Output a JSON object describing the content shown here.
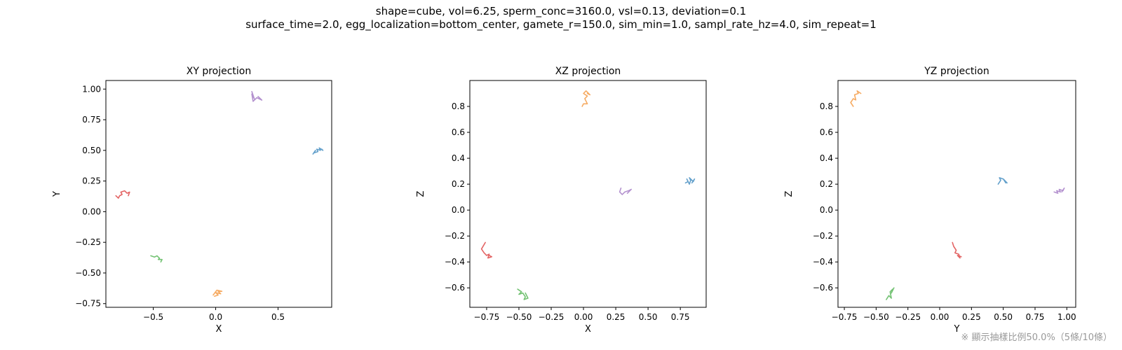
{
  "figure": {
    "title_line1": "shape=cube, vol=6.25, sperm_conc=3160.0, vsl=0.13, deviation=0.1",
    "title_line2": "surface_time=2.0, egg_localization=bottom_center, gamete_r=150.0, sim_min=1.0, sampl_rate_hz=4.0, sim_repeat=1",
    "note": "※ 顯示抽樣比例50.0%（5條/10條）"
  },
  "colors": {
    "blue": "#5b9bc8",
    "orange": "#f5a65b",
    "green": "#6cbf6c",
    "red": "#e15c5c",
    "purple": "#b08ccc"
  },
  "chart_data": [
    {
      "type": "line",
      "title": "XY projection",
      "xlabel": "X",
      "ylabel": "Y",
      "xlim": [
        -0.88,
        0.93
      ],
      "ylim": [
        -0.78,
        1.07
      ],
      "xticks": [
        -0.5,
        0.0,
        0.5
      ],
      "xtick_labels": [
        "−0.5",
        "0.0",
        "0.5"
      ],
      "yticks": [
        -0.75,
        -0.5,
        -0.25,
        0.0,
        0.25,
        0.5,
        0.75,
        1.0
      ],
      "ytick_labels": [
        "−0.75",
        "−0.50",
        "−0.25",
        "0.00",
        "0.25",
        "0.50",
        "0.75",
        "1.00"
      ],
      "grid": false,
      "series": [
        {
          "color": "blue",
          "x": [
            0.78,
            0.8,
            0.79,
            0.82,
            0.81,
            0.84,
            0.83,
            0.86,
            0.85
          ],
          "y": [
            0.47,
            0.5,
            0.48,
            0.49,
            0.51,
            0.5,
            0.52,
            0.5,
            0.51
          ]
        },
        {
          "color": "orange",
          "x": [
            -0.01,
            0.02,
            0.0,
            0.04,
            0.02,
            0.05,
            0.01,
            -0.02
          ],
          "y": [
            -0.69,
            -0.68,
            -0.66,
            -0.67,
            -0.65,
            -0.65,
            -0.64,
            -0.68
          ]
        },
        {
          "color": "green",
          "x": [
            -0.52,
            -0.49,
            -0.47,
            -0.45,
            -0.46,
            -0.43,
            -0.44
          ],
          "y": [
            -0.36,
            -0.37,
            -0.36,
            -0.38,
            -0.39,
            -0.39,
            -0.41
          ]
        },
        {
          "color": "red",
          "x": [
            -0.8,
            -0.78,
            -0.77,
            -0.75,
            -0.76,
            -0.73,
            -0.71,
            -0.69,
            -0.7
          ],
          "y": [
            0.13,
            0.11,
            0.13,
            0.14,
            0.16,
            0.17,
            0.15,
            0.16,
            0.13
          ]
        },
        {
          "color": "purple",
          "x": [
            0.29,
            0.3,
            0.31,
            0.29,
            0.3,
            0.33,
            0.35,
            0.37,
            0.34
          ],
          "y": [
            0.98,
            0.95,
            0.92,
            0.96,
            0.9,
            0.93,
            0.92,
            0.91,
            0.94
          ]
        }
      ]
    },
    {
      "type": "line",
      "title": "XZ projection",
      "xlabel": "X",
      "ylabel": "Z",
      "xlim": [
        -0.88,
        0.95
      ],
      "ylim": [
        -0.75,
        1.0
      ],
      "xticks": [
        -0.75,
        -0.5,
        -0.25,
        0.0,
        0.25,
        0.5,
        0.75
      ],
      "xtick_labels": [
        "−0.75",
        "−0.50",
        "−0.25",
        "0.00",
        "0.25",
        "0.50",
        "0.75"
      ],
      "yticks": [
        -0.6,
        -0.4,
        -0.2,
        0.0,
        0.2,
        0.4,
        0.6,
        0.8
      ],
      "ytick_labels": [
        "−0.6",
        "−0.4",
        "−0.2",
        "0.0",
        "0.2",
        "0.4",
        "0.6",
        "0.8"
      ],
      "grid": false,
      "series": [
        {
          "color": "blue",
          "x": [
            0.79,
            0.81,
            0.8,
            0.82,
            0.83,
            0.82,
            0.85,
            0.86,
            0.84
          ],
          "y": [
            0.21,
            0.22,
            0.24,
            0.2,
            0.23,
            0.25,
            0.22,
            0.24,
            0.21
          ]
        },
        {
          "color": "orange",
          "x": [
            -0.01,
            0.0,
            0.03,
            0.01,
            0.03,
            0.0,
            0.02,
            0.05,
            0.03
          ],
          "y": [
            0.8,
            0.82,
            0.82,
            0.86,
            0.88,
            0.9,
            0.92,
            0.89,
            0.9
          ]
        },
        {
          "color": "green",
          "x": [
            -0.51,
            -0.48,
            -0.5,
            -0.47,
            -0.45,
            -0.46,
            -0.43,
            -0.45
          ],
          "y": [
            -0.61,
            -0.63,
            -0.65,
            -0.64,
            -0.67,
            -0.69,
            -0.68,
            -0.64
          ]
        },
        {
          "color": "red",
          "x": [
            -0.76,
            -0.79,
            -0.77,
            -0.75,
            -0.73,
            -0.74,
            -0.71,
            -0.73
          ],
          "y": [
            -0.25,
            -0.3,
            -0.33,
            -0.35,
            -0.34,
            -0.37,
            -0.36,
            -0.35
          ]
        },
        {
          "color": "purple",
          "x": [
            0.29,
            0.28,
            0.3,
            0.32,
            0.35,
            0.37,
            0.34
          ],
          "y": [
            0.17,
            0.14,
            0.12,
            0.14,
            0.15,
            0.16,
            0.13
          ]
        }
      ]
    },
    {
      "type": "line",
      "title": "YZ projection",
      "xlabel": "Y",
      "ylabel": "Z",
      "xlim": [
        -0.8,
        1.07
      ],
      "ylim": [
        -0.75,
        1.0
      ],
      "xticks": [
        -0.75,
        -0.5,
        -0.25,
        0.0,
        0.25,
        0.5,
        0.75,
        1.0
      ],
      "xtick_labels": [
        "−0.75",
        "−0.50",
        "−0.25",
        "0.00",
        "0.25",
        "0.50",
        "0.75",
        "1.00"
      ],
      "yticks": [
        -0.6,
        -0.4,
        -0.2,
        0.0,
        0.2,
        0.4,
        0.6,
        0.8
      ],
      "ytick_labels": [
        "−0.6",
        "−0.4",
        "−0.2",
        "0.0",
        "0.2",
        "0.4",
        "0.6",
        "0.8"
      ],
      "grid": false,
      "series": [
        {
          "color": "blue",
          "x": [
            0.46,
            0.48,
            0.47,
            0.5,
            0.52,
            0.5,
            0.53
          ],
          "y": [
            0.2,
            0.23,
            0.25,
            0.24,
            0.21,
            0.24,
            0.21
          ]
        },
        {
          "color": "orange",
          "x": [
            -0.68,
            -0.7,
            -0.68,
            -0.66,
            -0.67,
            -0.64,
            -0.65,
            -0.62
          ],
          "y": [
            0.8,
            0.83,
            0.86,
            0.85,
            0.89,
            0.9,
            0.92,
            0.9
          ]
        },
        {
          "color": "green",
          "x": [
            -0.42,
            -0.4,
            -0.38,
            -0.39,
            -0.37,
            -0.38,
            -0.36
          ],
          "y": [
            -0.69,
            -0.66,
            -0.68,
            -0.63,
            -0.61,
            -0.64,
            -0.6
          ]
        },
        {
          "color": "red",
          "x": [
            0.1,
            0.11,
            0.13,
            0.12,
            0.15,
            0.16,
            0.14,
            0.17
          ],
          "y": [
            -0.25,
            -0.28,
            -0.31,
            -0.33,
            -0.34,
            -0.37,
            -0.35,
            -0.36
          ]
        },
        {
          "color": "purple",
          "x": [
            0.9,
            0.93,
            0.92,
            0.95,
            0.94,
            0.97,
            0.98,
            0.96
          ],
          "y": [
            0.14,
            0.13,
            0.15,
            0.14,
            0.16,
            0.15,
            0.17,
            0.14
          ]
        }
      ]
    }
  ]
}
